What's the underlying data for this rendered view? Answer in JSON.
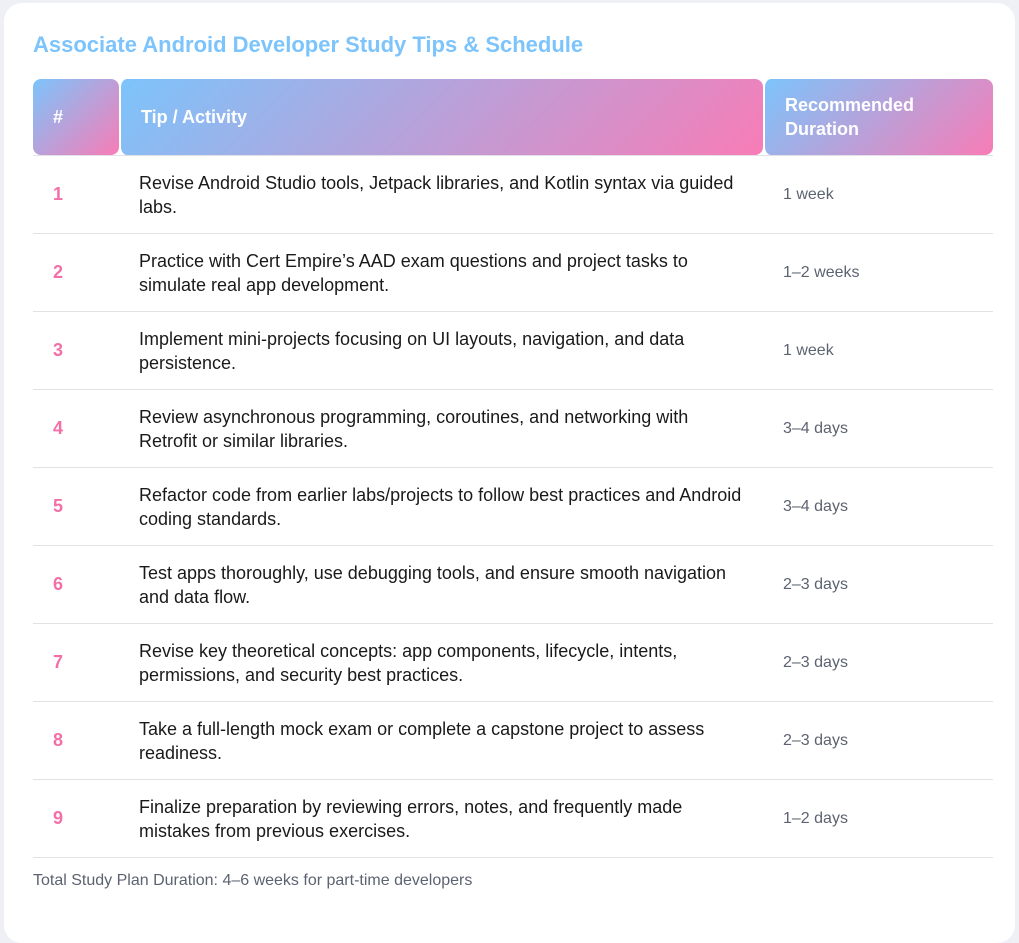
{
  "title": "Associate Android Developer Study Tips & Schedule",
  "columns": [
    "#",
    "Tip / Activity",
    "Recommended Duration"
  ],
  "rows": [
    {
      "num": "1",
      "tip": "Revise Android Studio tools, Jetpack libraries, and Kotlin syntax via guided labs.",
      "duration": "1 week"
    },
    {
      "num": "2",
      "tip": "Practice with Cert Empire’s AAD exam questions and project tasks to simulate real app development.",
      "duration": "1–2 weeks"
    },
    {
      "num": "3",
      "tip": "Implement mini-projects focusing on UI layouts, navigation, and data persistence.",
      "duration": "1 week"
    },
    {
      "num": "4",
      "tip": "Review asynchronous programming, coroutines, and networking with Retrofit or similar libraries.",
      "duration": "3–4 days"
    },
    {
      "num": "5",
      "tip": "Refactor code from earlier labs/projects to follow best practices and Android coding standards.",
      "duration": "3–4 days"
    },
    {
      "num": "6",
      "tip": "Test apps thoroughly, use debugging tools, and ensure smooth navigation and data flow.",
      "duration": "2–3 days"
    },
    {
      "num": "7",
      "tip": "Revise key theoretical concepts: app components, lifecycle, intents, permissions, and security best practices.",
      "duration": "2–3 days"
    },
    {
      "num": "8",
      "tip": "Take a full-length mock exam or complete a capstone project to assess readiness.",
      "duration": "2–3 days"
    },
    {
      "num": "9",
      "tip": "Finalize preparation by reviewing errors, notes, and frequently made mistakes from previous exercises.",
      "duration": "1–2 days"
    }
  ],
  "footer": "Total Study Plan Duration: 4–6 weeks for part-time developers",
  "colors": {
    "title": "#7cc4fb",
    "gradient_start": "#7cc4fb",
    "gradient_end": "#f87cb6",
    "number": "#f26fa8"
  }
}
